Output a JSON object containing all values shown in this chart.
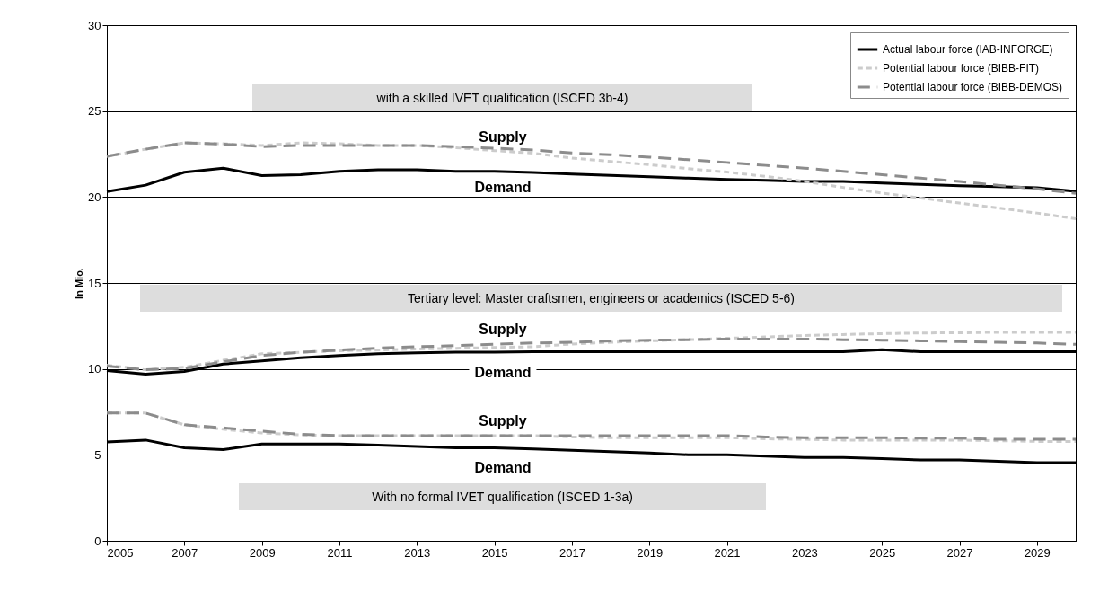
{
  "chart_data": {
    "type": "line",
    "ylabel": "In Mio.",
    "x": [
      2005,
      2006,
      2007,
      2008,
      2009,
      2010,
      2011,
      2012,
      2013,
      2014,
      2015,
      2016,
      2017,
      2018,
      2019,
      2020,
      2021,
      2022,
      2023,
      2024,
      2025,
      2026,
      2027,
      2028,
      2029,
      2030
    ],
    "xlim": [
      2005,
      2030
    ],
    "xticks": [
      2005,
      2007,
      2009,
      2011,
      2013,
      2015,
      2017,
      2019,
      2021,
      2023,
      2025,
      2027,
      2029
    ],
    "ylim": [
      0,
      30
    ],
    "yticks": [
      0,
      5,
      10,
      15,
      20,
      25,
      30
    ],
    "grid": "y",
    "legend": "top right",
    "marker": "none",
    "series": [
      {
        "name": "Actual labour force (IAB-INFORGE)",
        "color": "#000000",
        "line_style": "solid",
        "values": [
          20.32,
          20.69,
          21.44,
          21.68,
          21.25,
          21.3,
          21.5,
          21.58,
          21.58,
          21.5,
          21.5,
          21.43,
          21.34,
          21.26,
          21.18,
          21.1,
          21.03,
          20.97,
          20.9,
          20.91,
          20.81,
          20.74,
          20.66,
          20.6,
          20.54,
          20.33
        ]
      },
      {
        "name": "Potential labour force (BIBB-FIT)",
        "color": "#cccccc",
        "line_style": "dashed",
        "values": [
          22.37,
          22.78,
          23.15,
          23.1,
          23.0,
          23.15,
          23.1,
          23.0,
          23.0,
          22.87,
          22.7,
          22.55,
          22.27,
          22.07,
          21.88,
          21.65,
          21.45,
          21.2,
          20.91,
          20.56,
          20.23,
          19.94,
          19.65,
          19.36,
          19.07,
          18.74
        ]
      },
      {
        "name": "Potential labour force (BIBB-DEMOS)",
        "color": "#8c8c8c",
        "line_style": "dashed",
        "values": [
          22.37,
          22.78,
          23.15,
          23.08,
          22.93,
          23.0,
          23.0,
          23.0,
          23.0,
          22.93,
          22.84,
          22.74,
          22.56,
          22.46,
          22.32,
          22.17,
          22.01,
          21.84,
          21.68,
          21.49,
          21.3,
          21.1,
          20.91,
          20.68,
          20.48,
          20.21
        ]
      },
      {
        "color": "#000000",
        "line_style": "solid",
        "values": [
          9.9,
          9.7,
          9.85,
          10.28,
          10.47,
          10.65,
          10.78,
          10.88,
          10.93,
          10.97,
          10.97,
          11.0,
          11.0,
          11.0,
          11.0,
          11.0,
          11.0,
          11.0,
          11.0,
          11.0,
          11.12,
          11.0,
          11.0,
          11.0,
          11.0,
          11.0
        ]
      },
      {
        "color": "#cccccc",
        "line_style": "dashed",
        "values": [
          10.22,
          9.95,
          10.1,
          10.5,
          10.88,
          10.97,
          11.06,
          11.1,
          11.16,
          11.2,
          11.25,
          11.29,
          11.45,
          11.55,
          11.63,
          11.7,
          11.78,
          11.86,
          11.94,
          12.0,
          12.05,
          12.09,
          12.1,
          12.13,
          12.13,
          12.13
        ]
      },
      {
        "color": "#8c8c8c",
        "line_style": "dashed",
        "values": [
          10.17,
          9.95,
          10.04,
          10.41,
          10.78,
          10.97,
          11.1,
          11.21,
          11.29,
          11.36,
          11.44,
          11.51,
          11.55,
          11.63,
          11.67,
          11.7,
          11.74,
          11.74,
          11.74,
          11.7,
          11.67,
          11.63,
          11.59,
          11.55,
          11.51,
          11.43
        ]
      },
      {
        "color": "#000000",
        "line_style": "solid",
        "values": [
          5.75,
          5.86,
          5.41,
          5.3,
          5.63,
          5.63,
          5.63,
          5.56,
          5.49,
          5.41,
          5.41,
          5.34,
          5.26,
          5.19,
          5.11,
          5.0,
          5.0,
          4.93,
          4.85,
          4.85,
          4.78,
          4.7,
          4.7,
          4.63,
          4.55,
          4.55
        ]
      },
      {
        "color": "#cccccc",
        "line_style": "dashed",
        "values": [
          7.43,
          7.43,
          6.75,
          6.49,
          6.27,
          6.16,
          6.12,
          6.12,
          6.12,
          6.12,
          6.12,
          6.12,
          6.04,
          6.0,
          6.0,
          6.0,
          6.0,
          5.93,
          5.9,
          5.86,
          5.86,
          5.86,
          5.86,
          5.82,
          5.78,
          5.78
        ]
      },
      {
        "color": "#8c8c8c",
        "line_style": "dashed",
        "values": [
          7.43,
          7.43,
          6.75,
          6.57,
          6.38,
          6.19,
          6.12,
          6.12,
          6.12,
          6.12,
          6.12,
          6.12,
          6.12,
          6.12,
          6.12,
          6.12,
          6.12,
          6.04,
          6.0,
          6.0,
          6.0,
          5.97,
          5.97,
          5.9,
          5.9,
          5.9
        ]
      }
    ],
    "annotations": [
      "with a skilled IVET qualification (ISCED 3b-4)",
      "Supply",
      "Demand",
      "Tertiary level: Master craftsmen, engineers or academics (ISCED 5-6)",
      "Supply",
      "Demand",
      "Supply",
      "Demand",
      "With no formal IVET qualification (ISCED 1-3a)"
    ]
  }
}
